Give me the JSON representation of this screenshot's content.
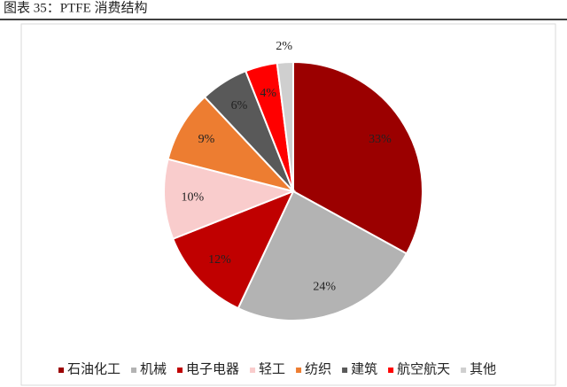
{
  "chart_data": {
    "type": "pie",
    "title": "图表 35：PTFE 消费结构",
    "categories": [
      "石油化工",
      "机械",
      "电子电器",
      "轻工",
      "纺织",
      "建筑",
      "航空航天",
      "其他"
    ],
    "values": [
      33,
      24,
      12,
      10,
      9,
      6,
      4,
      2
    ],
    "value_labels": [
      "33%",
      "24%",
      "12%",
      "10%",
      "9%",
      "6%",
      "4%",
      "2%"
    ],
    "colors": [
      "#9b0000",
      "#b3b3b3",
      "#c00000",
      "#f9cccc",
      "#ed7d31",
      "#595959",
      "#ff0000",
      "#cfcfcf"
    ],
    "legend": "bottom"
  }
}
